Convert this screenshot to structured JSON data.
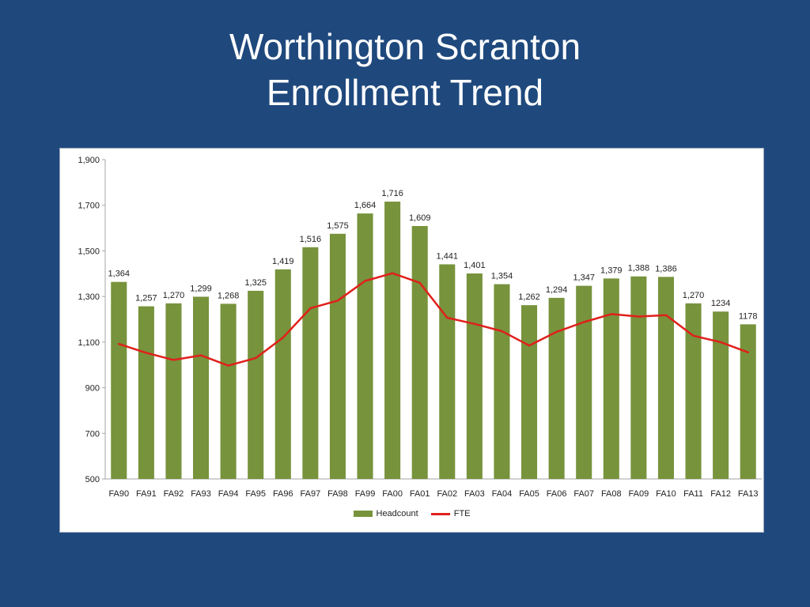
{
  "slide": {
    "title_line1": "Worthington Scranton",
    "title_line2": "Enrollment Trend"
  },
  "colors": {
    "background": "#1f497d",
    "bar": "#77933c",
    "line": "#e0201b"
  },
  "chart_data": {
    "type": "bar",
    "title": "",
    "xlabel": "",
    "ylabel": "",
    "ylim": [
      500,
      1900
    ],
    "yticks": [
      "1,900",
      "1,700",
      "1,500",
      "1,300",
      "1,100",
      "900",
      "700",
      "500"
    ],
    "ytick_values": [
      1900,
      1700,
      1500,
      1300,
      1100,
      900,
      700,
      500
    ],
    "grid": false,
    "legend_position": "bottom",
    "categories": [
      "FA90",
      "FA91",
      "FA92",
      "FA93",
      "FA94",
      "FA95",
      "FA96",
      "FA97",
      "FA98",
      "FA99",
      "FA00",
      "FA01",
      "FA02",
      "FA03",
      "FA04",
      "FA05",
      "FA06",
      "FA07",
      "FA08",
      "FA09",
      "FA10",
      "FA11",
      "FA12",
      "FA13"
    ],
    "series": [
      {
        "name": "Headcount",
        "type": "bar",
        "values": [
          1364,
          1257,
          1270,
          1299,
          1268,
          1325,
          1419,
          1516,
          1575,
          1664,
          1716,
          1609,
          1441,
          1401,
          1354,
          1262,
          1294,
          1347,
          1379,
          1388,
          1386,
          1270,
          1234,
          1178
        ],
        "labels": [
          "1,364",
          "1,257",
          "1,270",
          "1,299",
          "1,268",
          "1,325",
          "1,419",
          "1,516",
          "1,575",
          "1,664",
          "1,716",
          "1,609",
          "1,441",
          "1,401",
          "1,354",
          "1,262",
          "1,294",
          "1,347",
          "1,379",
          "1,388",
          "1,386",
          "1,270",
          "1234",
          "1178"
        ]
      },
      {
        "name": "FTE",
        "type": "line",
        "values": [
          1092,
          1053,
          1022,
          1042,
          997,
          1030,
          1120,
          1248,
          1282,
          1368,
          1402,
          1360,
          1207,
          1180,
          1148,
          1085,
          1145,
          1188,
          1223,
          1212,
          1218,
          1128,
          1100,
          1055
        ]
      }
    ]
  }
}
